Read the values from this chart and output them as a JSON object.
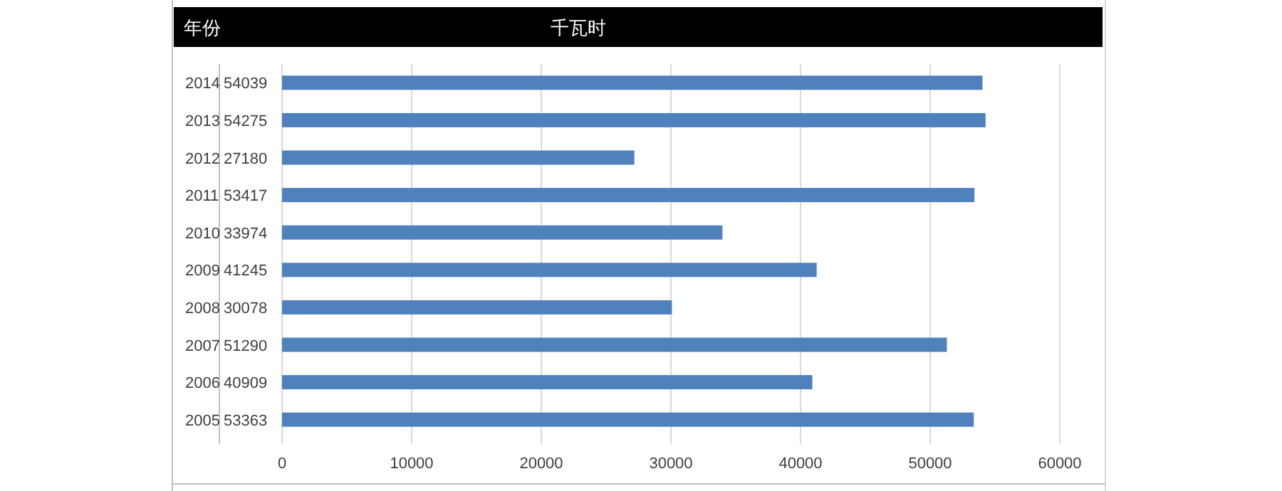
{
  "chart_data": {
    "type": "bar",
    "orientation": "horizontal",
    "title": "千瓦时",
    "ylabel": "年份",
    "categories": [
      "2014",
      "2013",
      "2012",
      "2011",
      "2010",
      "2009",
      "2008",
      "2007",
      "2006",
      "2005"
    ],
    "values": [
      54039,
      54275,
      27180,
      53417,
      33974,
      41245,
      30078,
      51290,
      40909,
      53363
    ],
    "color": "#4f81bd",
    "xlim": [
      0,
      60000
    ],
    "xticks": [
      0,
      10000,
      20000,
      30000,
      40000,
      50000,
      60000
    ],
    "grid": "x",
    "data_labels": true
  }
}
